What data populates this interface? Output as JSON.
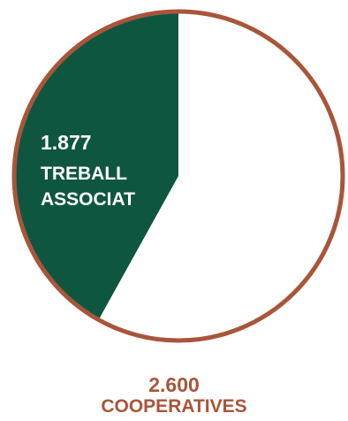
{
  "chart_data": {
    "type": "pie",
    "slices": [
      {
        "label": "TREBALL ASSOCIAT",
        "value": 1877,
        "display_value": "1.877",
        "color": "#0f5641"
      },
      {
        "label": "COOPERATIVES",
        "value": 2600,
        "display_value": "2.600",
        "color": "#ffffff"
      }
    ],
    "outline_color": "#a9553a"
  },
  "labels": {
    "treball_value": "1.877",
    "treball_line1": "TREBALL",
    "treball_line2": "ASSOCIAT",
    "coop_value": "2.600",
    "coop_label": "COOPERATIVES"
  }
}
